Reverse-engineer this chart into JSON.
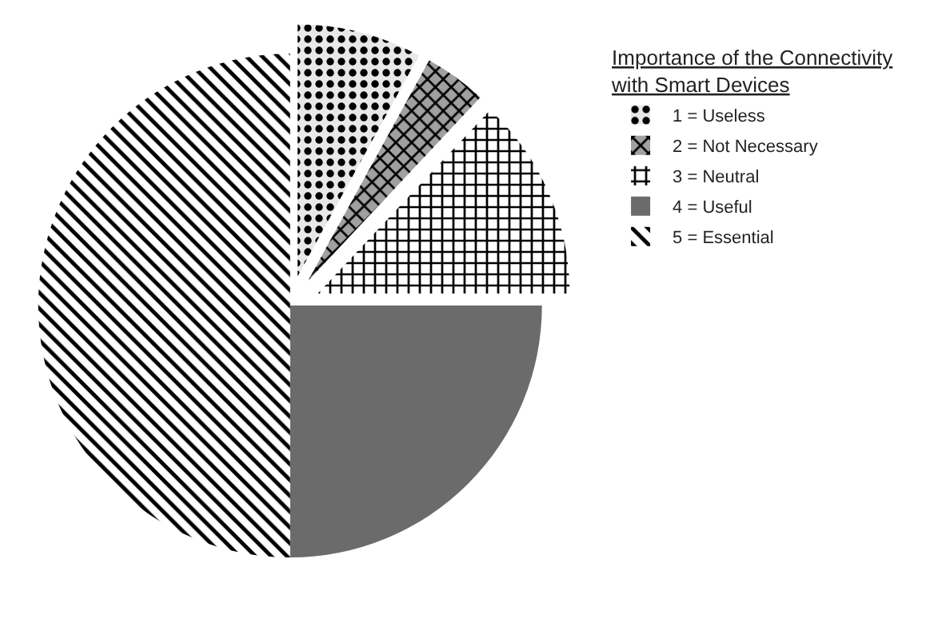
{
  "chart_data": {
    "type": "pie",
    "legend_title": "Importance of the Connectivity with Smart Devices",
    "legend": "right",
    "categories": [
      "1 = Useless",
      "2 = Not Necessary",
      "3 = Neutral",
      "4 = Useful",
      "5 = Essential"
    ],
    "values": [
      8,
      4,
      13,
      25,
      50
    ],
    "colors": [
      "#e8e8e8",
      "#a0a0a0",
      "#ffffff",
      "#6b6b6b",
      "#ffffff"
    ]
  }
}
